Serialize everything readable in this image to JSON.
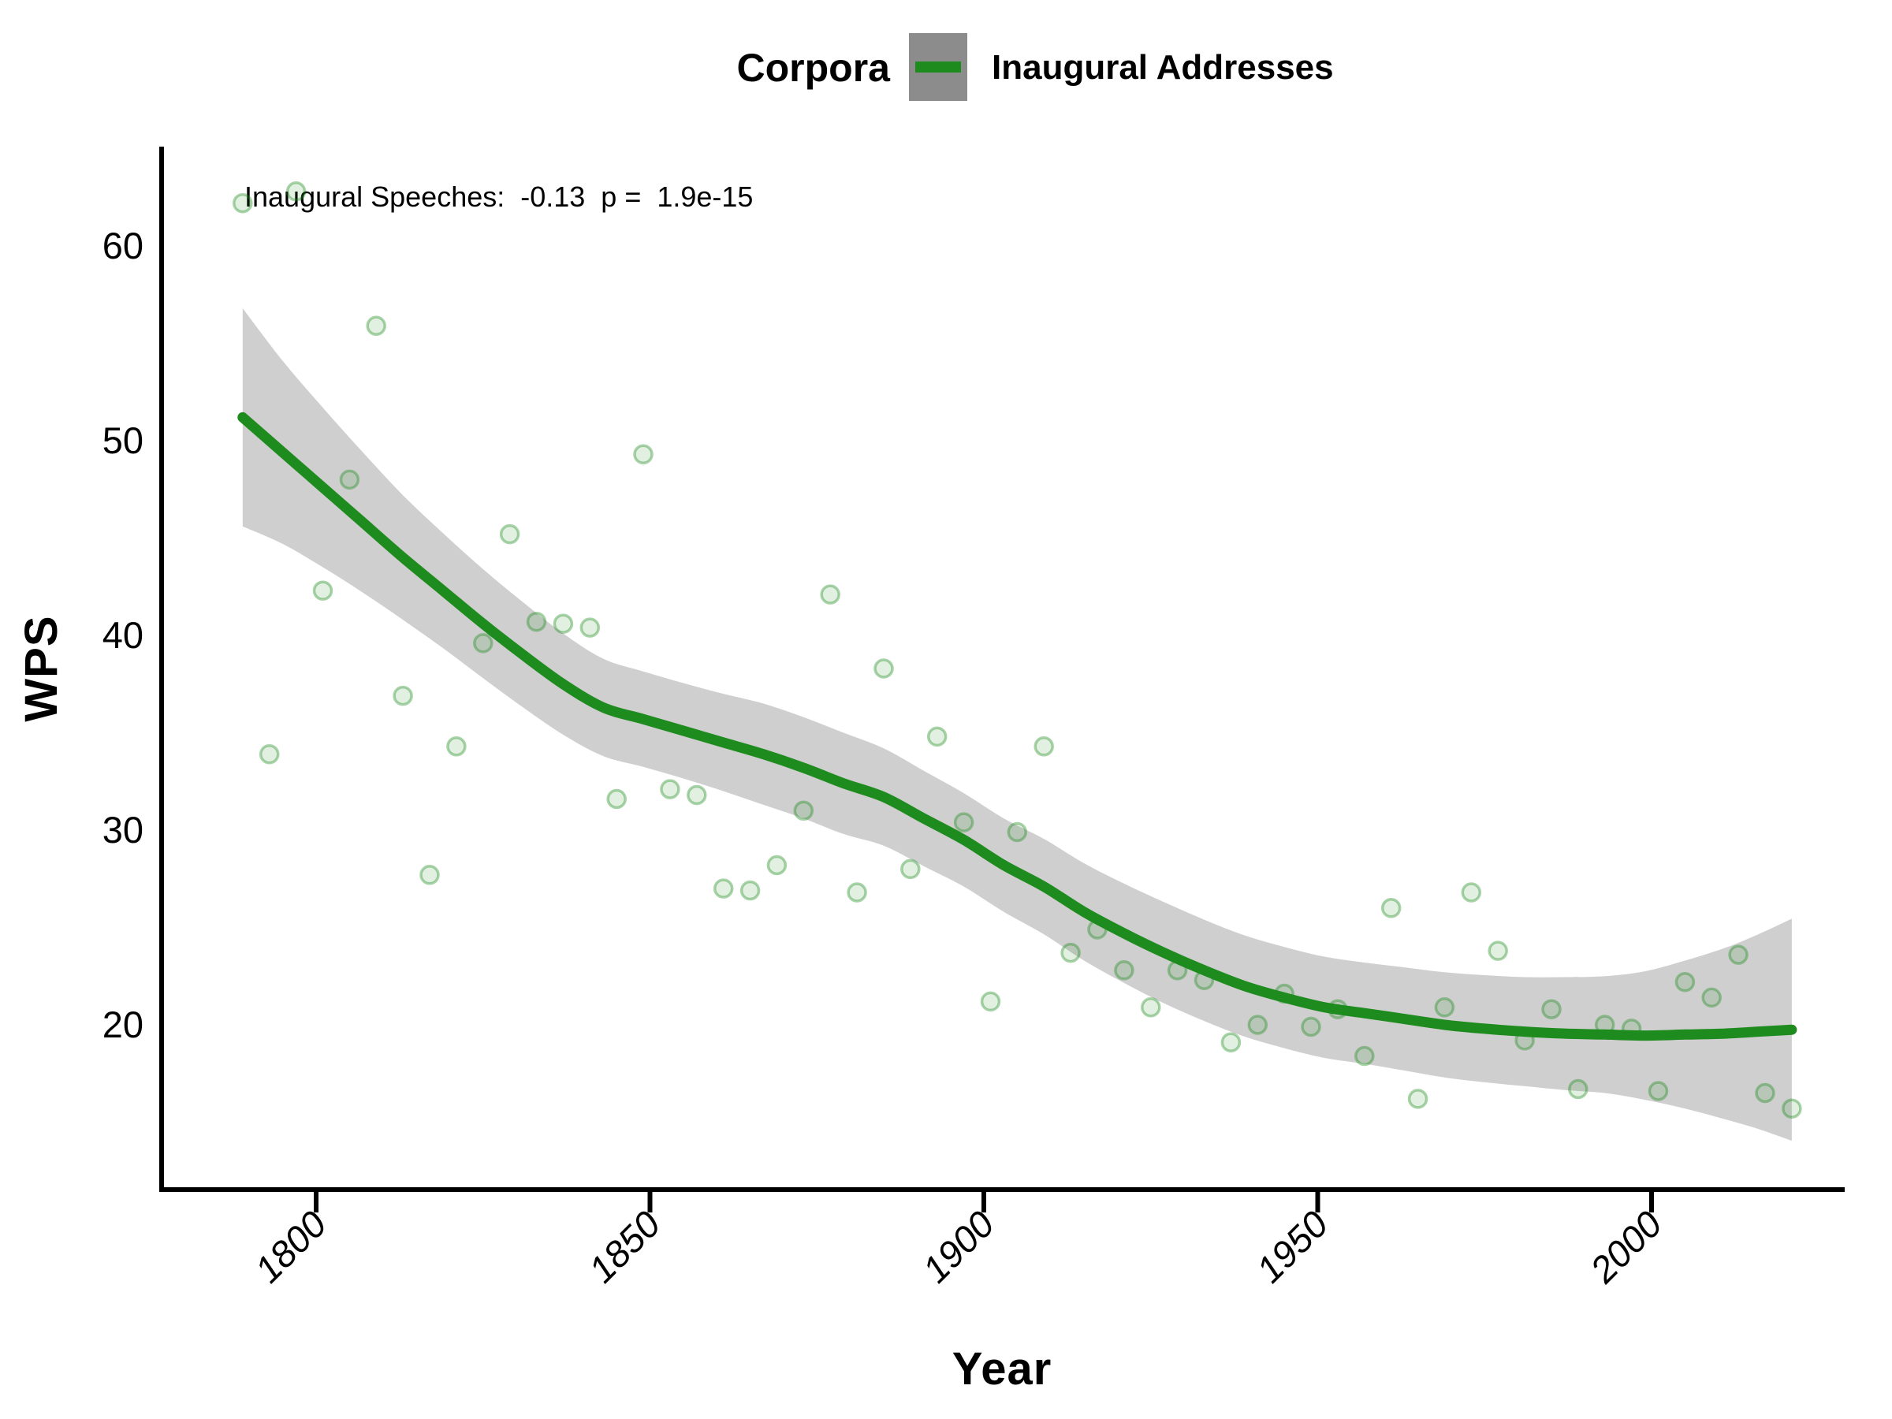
{
  "legend": {
    "title": "Corpora",
    "items": [
      {
        "label": "Inaugural Addresses",
        "key_fill": "#8c8c8c",
        "line_color": "#1e8b1e"
      }
    ]
  },
  "annotation": {
    "text": "Inaugural Speeches:  -0.13  p =  1.9e-15",
    "color": "#1e8b1e"
  },
  "colors": {
    "smooth_line": "#1e8b1e",
    "ribbon": "#cfcfcf",
    "point_fill": "rgba(30,139,30,0.13)",
    "point_stroke": "rgba(30,139,30,0.38)",
    "axis": "#000000"
  },
  "chart_data": {
    "type": "scatter",
    "title": "",
    "xlabel": "Year",
    "ylabel": "WPS",
    "x_ticks": [
      1800,
      1850,
      1900,
      1950,
      2000
    ],
    "y_ticks": [
      20,
      30,
      40,
      50,
      60
    ],
    "xlim": [
      1777,
      2029
    ],
    "ylim": [
      11.5,
      65.2
    ],
    "grid": false,
    "legend_position": "top",
    "series": [
      {
        "name": "Inaugural Addresses",
        "points": [
          [
            1789,
            62.2
          ],
          [
            1793,
            33.9
          ],
          [
            1797,
            62.8
          ],
          [
            1801,
            42.3
          ],
          [
            1805,
            48.0
          ],
          [
            1809,
            55.9
          ],
          [
            1813,
            36.9
          ],
          [
            1817,
            27.7
          ],
          [
            1821,
            34.3
          ],
          [
            1825,
            39.6
          ],
          [
            1829,
            45.2
          ],
          [
            1833,
            40.7
          ],
          [
            1837,
            40.6
          ],
          [
            1841,
            40.4
          ],
          [
            1845,
            31.6
          ],
          [
            1849,
            49.3
          ],
          [
            1853,
            32.1
          ],
          [
            1857,
            31.8
          ],
          [
            1861,
            27.0
          ],
          [
            1865,
            26.9
          ],
          [
            1869,
            28.2
          ],
          [
            1873,
            31.0
          ],
          [
            1877,
            42.1
          ],
          [
            1881,
            26.8
          ],
          [
            1885,
            38.3
          ],
          [
            1889,
            28.0
          ],
          [
            1893,
            34.8
          ],
          [
            1897,
            30.4
          ],
          [
            1901,
            21.2
          ],
          [
            1905,
            29.9
          ],
          [
            1909,
            34.3
          ],
          [
            1913,
            23.7
          ],
          [
            1917,
            24.9
          ],
          [
            1921,
            22.8
          ],
          [
            1925,
            20.9
          ],
          [
            1929,
            22.8
          ],
          [
            1933,
            22.3
          ],
          [
            1937,
            19.1
          ],
          [
            1941,
            20.0
          ],
          [
            1945,
            21.6
          ],
          [
            1949,
            19.9
          ],
          [
            1953,
            20.8
          ],
          [
            1957,
            18.4
          ],
          [
            1961,
            26.0
          ],
          [
            1965,
            16.2
          ],
          [
            1969,
            20.9
          ],
          [
            1973,
            26.8
          ],
          [
            1977,
            23.8
          ],
          [
            1981,
            19.2
          ],
          [
            1985,
            20.8
          ],
          [
            1989,
            16.7
          ],
          [
            1993,
            20.0
          ],
          [
            1997,
            19.8
          ],
          [
            2001,
            16.6
          ],
          [
            2005,
            22.2
          ],
          [
            2009,
            21.4
          ],
          [
            2013,
            23.6
          ],
          [
            2017,
            16.5
          ],
          [
            2021,
            15.7
          ]
        ],
        "smooth": {
          "x": [
            1789,
            1795,
            1801,
            1807,
            1813,
            1819,
            1825,
            1831,
            1837,
            1843,
            1849,
            1855,
            1861,
            1867,
            1873,
            1879,
            1885,
            1891,
            1897,
            1903,
            1909,
            1915,
            1921,
            1927,
            1933,
            1939,
            1945,
            1951,
            1957,
            1963,
            1969,
            1975,
            1981,
            1987,
            1993,
            1999,
            2005,
            2011,
            2016,
            2021
          ],
          "fit": [
            51.2,
            49.4,
            47.6,
            45.8,
            44.0,
            42.3,
            40.6,
            39.0,
            37.5,
            36.3,
            35.7,
            35.1,
            34.5,
            33.9,
            33.2,
            32.4,
            31.7,
            30.6,
            29.5,
            28.2,
            27.1,
            25.8,
            24.7,
            23.7,
            22.8,
            22.0,
            21.4,
            20.9,
            20.6,
            20.3,
            20.0,
            19.8,
            19.65,
            19.55,
            19.5,
            19.45,
            19.5,
            19.55,
            19.65,
            19.75
          ],
          "half_width": [
            5.6,
            4.7,
            4.1,
            3.6,
            3.2,
            2.95,
            2.8,
            2.7,
            2.6,
            2.5,
            2.45,
            2.45,
            2.5,
            2.6,
            2.6,
            2.6,
            2.5,
            2.45,
            2.4,
            2.4,
            2.45,
            2.5,
            2.55,
            2.6,
            2.6,
            2.6,
            2.6,
            2.6,
            2.6,
            2.65,
            2.7,
            2.75,
            2.8,
            2.9,
            3.0,
            3.3,
            3.8,
            4.4,
            5.0,
            5.7
          ]
        }
      }
    ]
  }
}
